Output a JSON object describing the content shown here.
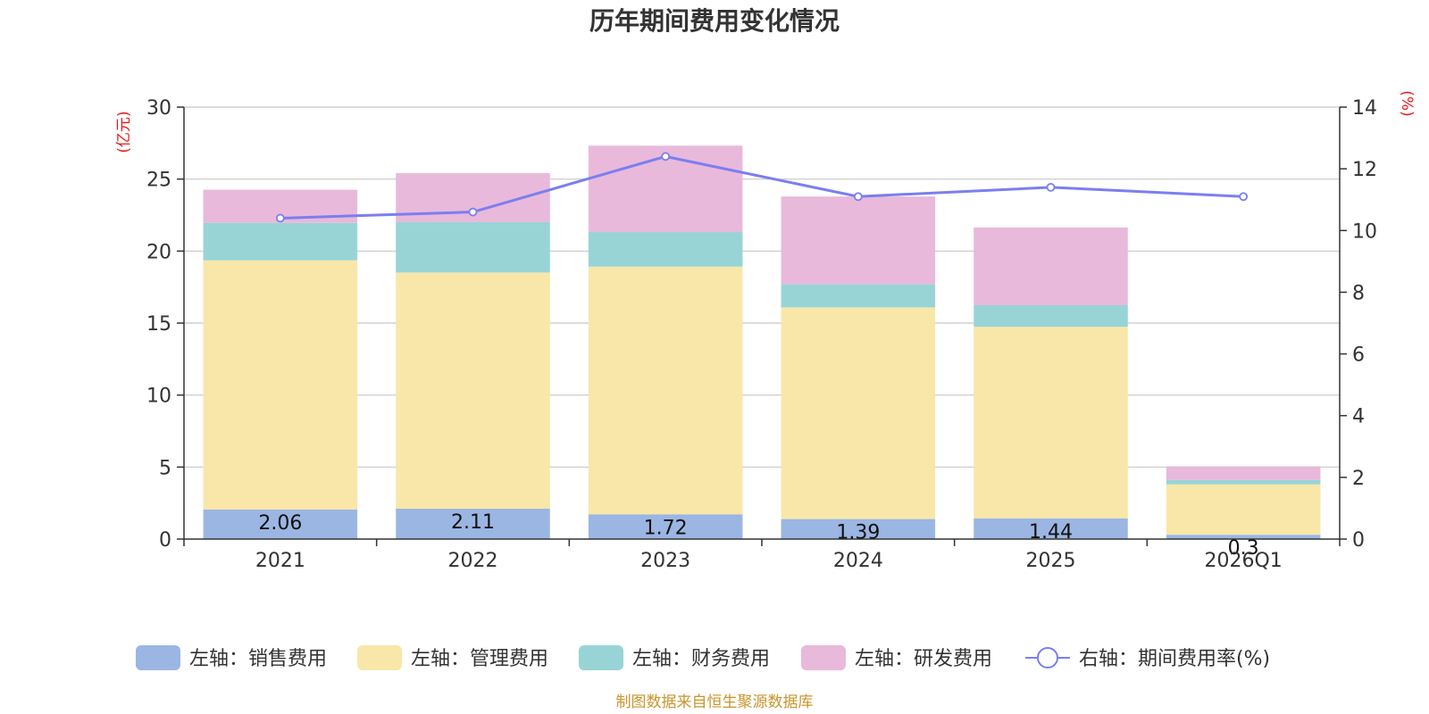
{
  "chart_data": {
    "type": "bar",
    "stacked": true,
    "title": "历年期间费用变化情况",
    "categories": [
      "2021",
      "2022",
      "2023",
      "2024",
      "2025",
      "2026Q1"
    ],
    "left_axis": {
      "unit": "(亿元)",
      "ylim": [
        0,
        30
      ],
      "ticks": [
        0,
        5,
        10,
        15,
        20,
        25,
        30
      ]
    },
    "right_axis": {
      "unit": "(%)",
      "ylim": [
        0,
        14
      ],
      "ticks": [
        0,
        2,
        4,
        6,
        8,
        10,
        12,
        14
      ]
    },
    "series": [
      {
        "name": "左轴：销售费用",
        "axis": "left",
        "color": "#9bb6e3",
        "values": [
          2.06,
          2.11,
          1.72,
          1.39,
          1.44,
          0.3
        ],
        "labels": [
          "2.06",
          "2.11",
          "1.72",
          "1.39",
          "1.44",
          "0.3"
        ]
      },
      {
        "name": "左轴：管理费用",
        "axis": "left",
        "color": "#f8e7a8",
        "values": [
          17.3,
          16.4,
          17.2,
          14.7,
          13.3,
          3.5
        ]
      },
      {
        "name": "左轴：财务费用",
        "axis": "left",
        "color": "#98d4d6",
        "values": [
          2.6,
          3.5,
          2.4,
          1.6,
          1.5,
          0.3
        ]
      },
      {
        "name": "左轴：研发费用",
        "axis": "left",
        "color": "#e8b9da",
        "values": [
          2.3,
          3.4,
          6.0,
          6.1,
          5.4,
          0.95
        ]
      },
      {
        "name": "右轴：期间费用率(%)",
        "axis": "right",
        "type": "line",
        "color": "#7b7ef0",
        "values": [
          10.4,
          10.6,
          12.4,
          11.1,
          11.4,
          11.1
        ]
      }
    ],
    "legend_position": "bottom",
    "grid": true,
    "source": "制图数据来自恒生聚源数据库"
  }
}
